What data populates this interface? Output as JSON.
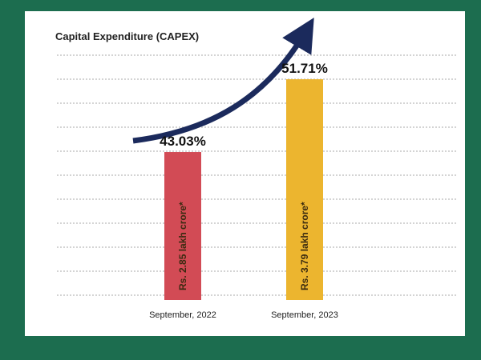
{
  "chart_data": {
    "type": "bar",
    "title": "Capital Expenditure (CAPEX)",
    "categories": [
      "September, 2022",
      "September, 2023"
    ],
    "values": [
      43.03,
      51.71
    ],
    "value_labels": [
      "43.03%",
      "51.71%"
    ],
    "bar_labels": [
      "Rs. 2.85 lakh crore*",
      "Rs. 3.79 lakh crore*"
    ],
    "colors": [
      "#d24b55",
      "#ecb52f"
    ],
    "arrow_color": "#1b2a5c",
    "grid": true,
    "xlabel": "",
    "ylabel": ""
  }
}
